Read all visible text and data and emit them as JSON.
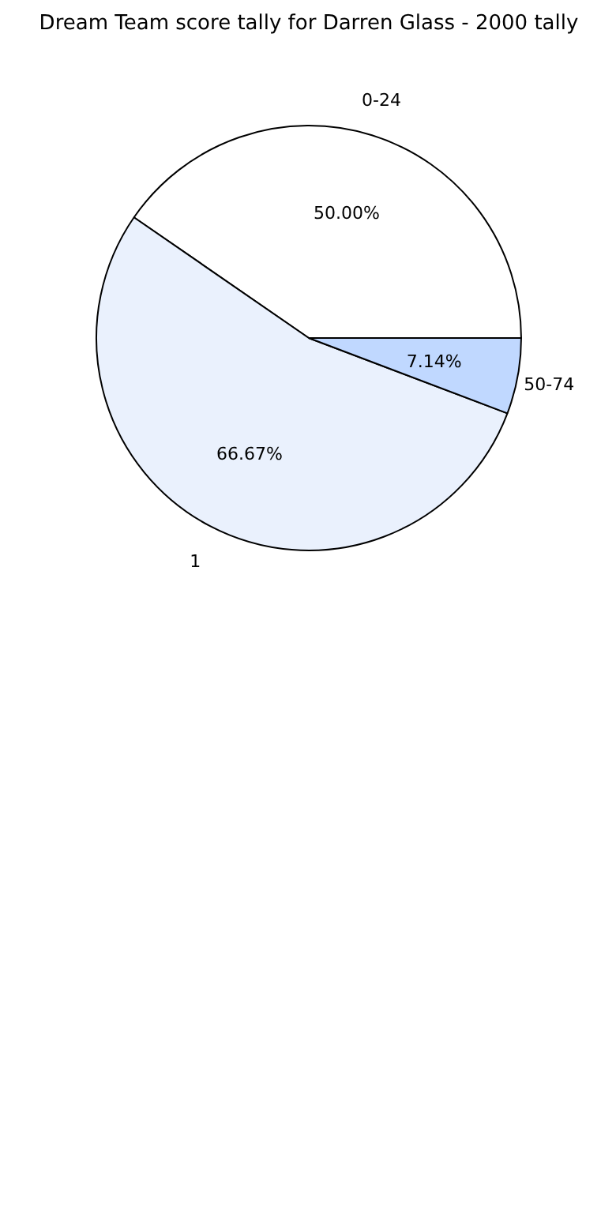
{
  "chart_data": {
    "type": "pie",
    "title": "Dream Team score tally for Darren Glass - 2000 tally",
    "categories": [
      "0-24",
      "1",
      "50-74"
    ],
    "values": [
      50.0,
      66.67,
      7.14
    ],
    "value_labels": [
      "50.00%",
      "66.67%",
      "7.14%"
    ],
    "colors": [
      "#ffffff",
      "#eaf1fd",
      "#c0d8ff"
    ],
    "legend": false
  }
}
